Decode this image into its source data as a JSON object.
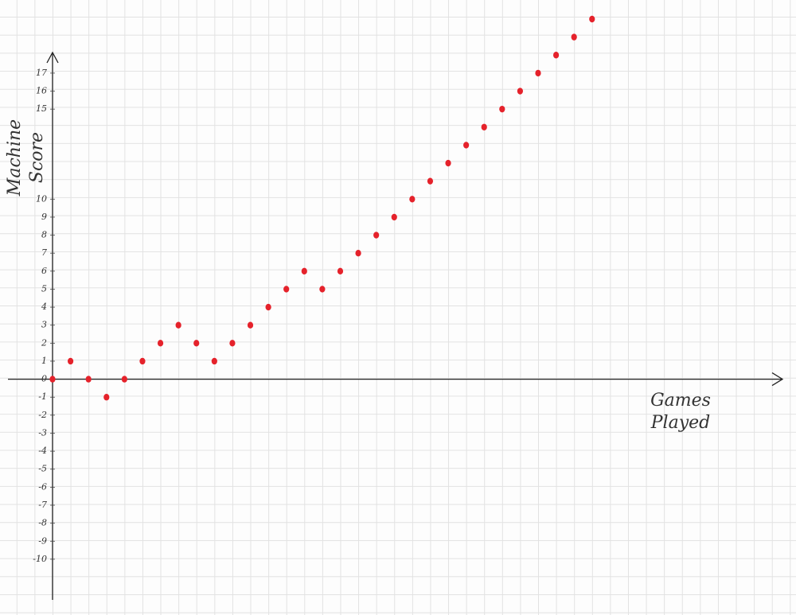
{
  "chart_data": {
    "type": "scatter",
    "xlabel": "Games Played",
    "ylabel": "Machine Score",
    "x": [
      0,
      1,
      2,
      3,
      4,
      5,
      6,
      7,
      8,
      9,
      10,
      11,
      12,
      13,
      14,
      15,
      16,
      17,
      18,
      19,
      20,
      21,
      22,
      23,
      24,
      25,
      26,
      27,
      28,
      29,
      30
    ],
    "series": [
      {
        "color": "#e5222b",
        "values": [
          0,
          1,
          0,
          -1,
          0,
          1,
          2,
          3,
          2,
          1,
          2,
          3,
          4,
          5,
          6,
          5,
          6,
          7,
          8,
          9,
          10,
          11,
          12,
          13,
          14,
          15,
          16,
          17,
          18,
          19,
          20
        ]
      }
    ],
    "xlim": [
      0,
      40.5
    ],
    "ylim": [
      -12.7,
      20
    ],
    "yticks": [
      -10,
      -9,
      -8,
      -7,
      -6,
      -5,
      -4,
      -3,
      -2,
      -1,
      0,
      1,
      2,
      3,
      4,
      5,
      6,
      7,
      8,
      9,
      10,
      15,
      16,
      17
    ]
  }
}
